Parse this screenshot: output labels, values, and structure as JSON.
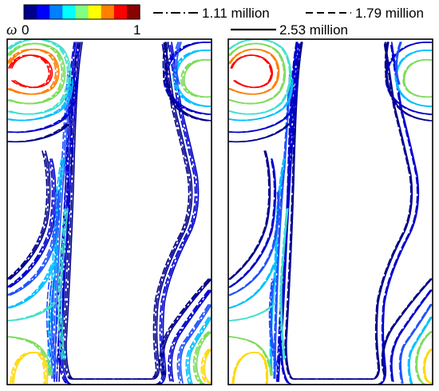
{
  "chart_data": {
    "type": "contour",
    "colorbar": {
      "symbol": "ω",
      "min_label": "0",
      "max_label": "1",
      "range": [
        0,
        1
      ],
      "colors": [
        "#00008b",
        "#0000ff",
        "#0080ff",
        "#00ffff",
        "#80ff80",
        "#ffff00",
        "#ff8000",
        "#ff0000",
        "#8b0000"
      ]
    },
    "legend": {
      "placement": "top",
      "entries": [
        {
          "label": "1.11 million",
          "style": "dash-dot"
        },
        {
          "label": "1.79 million",
          "style": "dashed"
        },
        {
          "label": "2.53 million",
          "style": "solid"
        }
      ]
    },
    "panels": 2,
    "levels": [
      {
        "value": 0.05,
        "color": "#00008b"
      },
      {
        "value": 0.1,
        "color": "#0000cd"
      },
      {
        "value": 0.2,
        "color": "#1e50ff"
      },
      {
        "value": 0.3,
        "color": "#00bfff"
      },
      {
        "value": 0.4,
        "color": "#40e0d0"
      },
      {
        "value": 0.5,
        "color": "#7cdc5a"
      },
      {
        "value": 0.6,
        "color": "#ffd700"
      },
      {
        "value": 0.8,
        "color": "#ff7f00"
      },
      {
        "value": 0.9,
        "color": "#ff0000"
      }
    ]
  }
}
